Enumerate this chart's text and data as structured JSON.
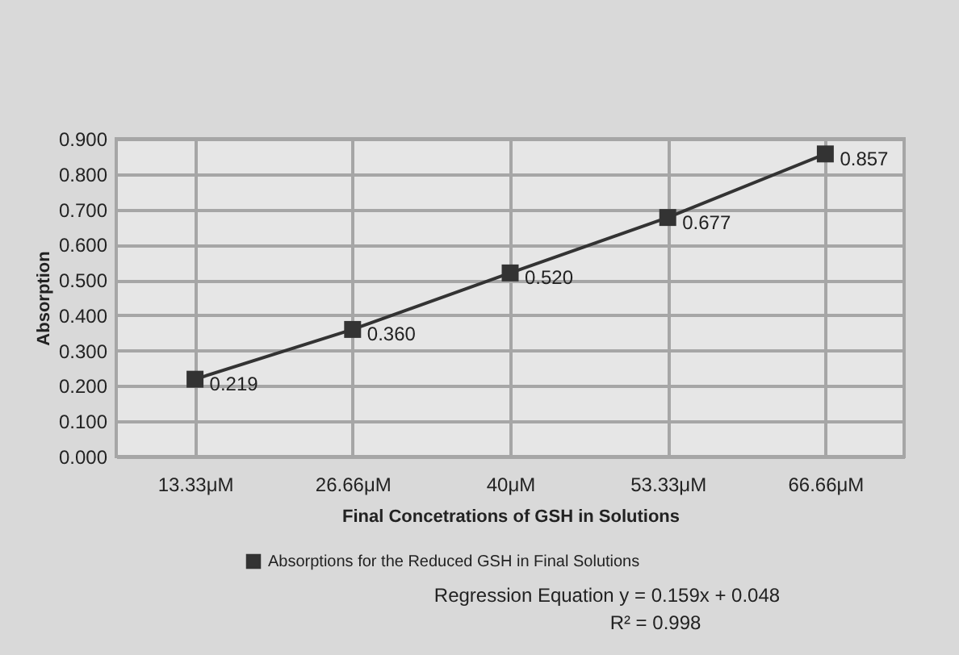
{
  "chart_data": {
    "type": "line",
    "xlabel": "Final Concetrations of GSH in Solutions",
    "ylabel": "Absorption",
    "categories": [
      "13.33μM",
      "26.66μM",
      "40μM",
      "53.33μM",
      "66.66μM"
    ],
    "series": [
      {
        "name": "Absorptions for the Reduced GSH in Final Solutions",
        "color": "#333333",
        "values": [
          0.219,
          0.36,
          0.52,
          0.677,
          0.857
        ],
        "value_labels": [
          "0.219",
          "0.360",
          "0.520",
          "0.677",
          "0.857"
        ]
      }
    ],
    "ylim": [
      0,
      0.9
    ],
    "yticks": [
      {
        "value": 0,
        "label": "0.000"
      },
      {
        "value": 0.1,
        "label": "0.100"
      },
      {
        "value": 0.2,
        "label": "0.200"
      },
      {
        "value": 0.3,
        "label": "0.300"
      },
      {
        "value": 0.4,
        "label": "0.400"
      },
      {
        "value": 0.5,
        "label": "0.500"
      },
      {
        "value": 0.6,
        "label": "0.600"
      },
      {
        "value": 0.7,
        "label": "0.700"
      },
      {
        "value": 0.8,
        "label": "0.800"
      },
      {
        "value": 0.9,
        "label": "0.900"
      }
    ],
    "grid": true,
    "legend": "bottom",
    "marker": "square",
    "annotations": [
      "Regression Equation  y = 0.159x + 0.048",
      "R² = 0.998"
    ]
  }
}
